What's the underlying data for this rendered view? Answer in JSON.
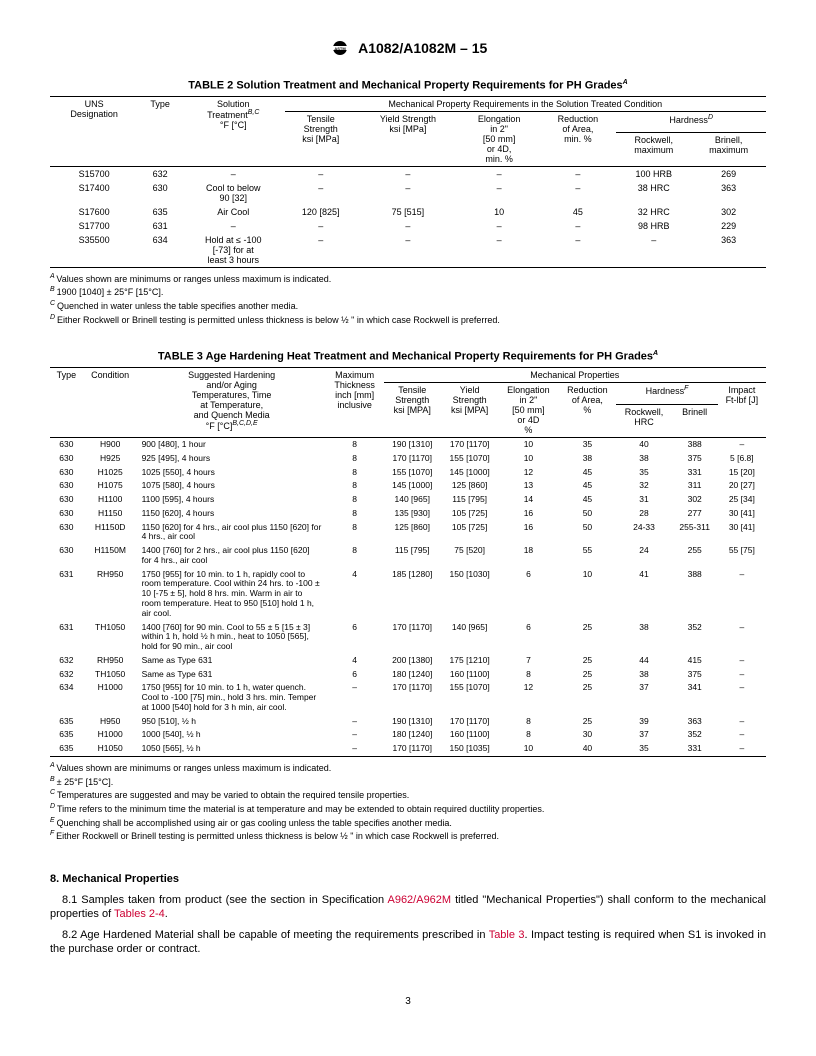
{
  "header": {
    "standard": "A1082/A1082M – 15"
  },
  "table2": {
    "title": "TABLE 2 Solution Treatment and Mechanical Property Requirements for PH Grades",
    "titleSup": "A",
    "spanHead": "Mechanical Property Requirements in the Solution Treated Condition",
    "cols": {
      "uns": "UNS\nDesignation",
      "type": "Type",
      "solution": "Solution\nTreatment",
      "solutionSup": "B,C",
      "solutionUnit": "°F [°C]",
      "tensile": "Tensile\nStrength\nksi [MPa]",
      "yield": "Yield Strength\nksi [MPa]",
      "elong": "Elongation\nin 2\"\n[50 mm]\nor 4D,\nmin. %",
      "reduction": "Reduction\nof Area,\nmin. %",
      "hardness": "Hardness",
      "hardnessSup": "D",
      "rockwell": "Rockwell,\nmaximum",
      "brinell": "Brinell,\nmaximum"
    },
    "rows": [
      {
        "uns": "S15700",
        "type": "632",
        "sol": "–",
        "ten": "–",
        "yld": "–",
        "el": "–",
        "ra": "–",
        "rock": "100 HRB",
        "brin": "269"
      },
      {
        "uns": "S17400",
        "type": "630",
        "sol": "Cool to below\n90 [32]",
        "ten": "–",
        "yld": "–",
        "el": "–",
        "ra": "–",
        "rock": "38 HRC",
        "brin": "363"
      },
      {
        "uns": "S17600",
        "type": "635",
        "sol": "Air Cool",
        "ten": "120 [825]",
        "yld": "75 [515]",
        "el": "10",
        "ra": "45",
        "rock": "32 HRC",
        "brin": "302"
      },
      {
        "uns": "S17700",
        "type": "631",
        "sol": "–",
        "ten": "–",
        "yld": "–",
        "el": "–",
        "ra": "–",
        "rock": "98 HRB",
        "brin": "229"
      },
      {
        "uns": "S35500",
        "type": "634",
        "sol": "Hold at ≤ -100\n[-73] for at\nleast 3 hours",
        "ten": "–",
        "yld": "–",
        "el": "–",
        "ra": "–",
        "rock": "–",
        "brin": "363"
      }
    ],
    "notes": [
      {
        "sup": "A",
        "txt": "Values shown are minimums or ranges unless maximum is indicated."
      },
      {
        "sup": "B",
        "txt": "1900 [1040] ± 25°F [15°C]."
      },
      {
        "sup": "C",
        "txt": "Quenched in water unless the table specifies another media."
      },
      {
        "sup": "D",
        "txt": "Either Rockwell or Brinell testing is permitted unless thickness is below ½ \" in which case Rockwell is preferred."
      }
    ]
  },
  "table3": {
    "title": "TABLE 3 Age Hardening Heat Treatment and Mechanical Property Requirements for PH Grades",
    "titleSup": "A",
    "spanHead": "Mechanical Properties",
    "cols": {
      "type": "Type",
      "cond": "Condition",
      "treat": "Suggested Hardening\nand/or Aging\nTemperatures, Time\nat Temperature,\nand Quench Media\n°F [°C]",
      "treatSup": "B,C,D,E",
      "thick": "Maximum\nThickness\ninch [mm]\ninclusive",
      "tensile": "Tensile\nStrength\nksi [MPA]",
      "yield": "Yield\nStrength\nksi [MPA]",
      "elong": "Elongation\nin 2\"\n[50 mm]\nor 4D\n%",
      "reduction": "Reduction\nof Area,\n%",
      "hardness": "Hardness",
      "hardnessSup": "F",
      "rockwell": "Rockwell,\nHRC",
      "brinell": "Brinell",
      "impact": "Impact\nFt-lbf [J]"
    },
    "rows": [
      {
        "t": "630",
        "c": "H900",
        "tr": "900 [480], 1 hour",
        "th": "8",
        "ts": "190 [1310]",
        "ys": "170 [1170]",
        "el": "10",
        "ra": "35",
        "r": "40",
        "b": "388",
        "i": "–"
      },
      {
        "t": "630",
        "c": "H925",
        "tr": "925 [495], 4 hours",
        "th": "8",
        "ts": "170 [1170]",
        "ys": "155 [1070]",
        "el": "10",
        "ra": "38",
        "r": "38",
        "b": "375",
        "i": "5 [6.8]"
      },
      {
        "t": "630",
        "c": "H1025",
        "tr": "1025 [550], 4 hours",
        "th": "8",
        "ts": "155 [1070]",
        "ys": "145 [1000]",
        "el": "12",
        "ra": "45",
        "r": "35",
        "b": "331",
        "i": "15 [20]"
      },
      {
        "t": "630",
        "c": "H1075",
        "tr": "1075 [580], 4 hours",
        "th": "8",
        "ts": "145 [1000]",
        "ys": "125 [860]",
        "el": "13",
        "ra": "45",
        "r": "32",
        "b": "311",
        "i": "20 [27]"
      },
      {
        "t": "630",
        "c": "H1100",
        "tr": "1100 [595], 4 hours",
        "th": "8",
        "ts": "140 [965]",
        "ys": "115 [795]",
        "el": "14",
        "ra": "45",
        "r": "31",
        "b": "302",
        "i": "25 [34]"
      },
      {
        "t": "630",
        "c": "H1150",
        "tr": "1150 [620], 4 hours",
        "th": "8",
        "ts": "135 [930]",
        "ys": "105 [725]",
        "el": "16",
        "ra": "50",
        "r": "28",
        "b": "277",
        "i": "30 [41]"
      },
      {
        "t": "630",
        "c": "H1150D",
        "tr": "1150 [620] for 4 hrs., air cool plus 1150 [620] for 4 hrs., air cool",
        "th": "8",
        "ts": "125 [860]",
        "ys": "105 [725]",
        "el": "16",
        "ra": "50",
        "r": "24-33",
        "b": "255-311",
        "i": "30 [41]"
      },
      {
        "t": "630",
        "c": "H1150M",
        "tr": "1400 [760] for 2 hrs., air cool plus 1150 [620] for 4 hrs., air cool",
        "th": "8",
        "ts": "115 [795]",
        "ys": "75 [520]",
        "el": "18",
        "ra": "55",
        "r": "24",
        "b": "255",
        "i": "55 [75]"
      },
      {
        "t": "631",
        "c": "RH950",
        "tr": "1750 [955] for 10 min. to 1 h, rapidly cool to room temperature. Cool within 24 hrs. to -100 ± 10 [-75 ± 5], hold 8 hrs. min. Warm in air to room temperature. Heat to 950 [510] hold 1 h, air cool.",
        "th": "4",
        "ts": "185 [1280]",
        "ys": "150 [1030]",
        "el": "6",
        "ra": "10",
        "r": "41",
        "b": "388",
        "i": "–"
      },
      {
        "t": "631",
        "c": "TH1050",
        "tr": "1400 [760] for 90 min. Cool to 55 ± 5 [15 ± 3] within 1 h, hold ½ h min., heat to 1050 [565], hold for 90 min., air cool",
        "th": "6",
        "ts": "170 [1170]",
        "ys": "140 [965]",
        "el": "6",
        "ra": "25",
        "r": "38",
        "b": "352",
        "i": "–"
      },
      {
        "t": "632",
        "c": "RH950",
        "tr": "Same as Type 631",
        "th": "4",
        "ts": "200 [1380]",
        "ys": "175 [1210]",
        "el": "7",
        "ra": "25",
        "r": "44",
        "b": "415",
        "i": "–"
      },
      {
        "t": "632",
        "c": "TH1050",
        "tr": "Same as Type 631",
        "th": "6",
        "ts": "180 [1240]",
        "ys": "160 [1100]",
        "el": "8",
        "ra": "25",
        "r": "38",
        "b": "375",
        "i": "–"
      },
      {
        "t": "634",
        "c": "H1000",
        "tr": "1750 [955] for 10 min. to 1 h, water quench. Cool to -100 [75] min., hold 3 hrs. min. Temper at 1000 [540] hold for 3 h min, air cool.",
        "th": "–",
        "ts": "170 [1170]",
        "ys": "155 [1070]",
        "el": "12",
        "ra": "25",
        "r": "37",
        "b": "341",
        "i": "–"
      },
      {
        "t": "635",
        "c": "H950",
        "tr": "950 [510], ½ h",
        "th": "–",
        "ts": "190 [1310]",
        "ys": "170 [1170]",
        "el": "8",
        "ra": "25",
        "r": "39",
        "b": "363",
        "i": "–"
      },
      {
        "t": "635",
        "c": "H1000",
        "tr": "1000 [540], ½ h",
        "th": "–",
        "ts": "180 [1240]",
        "ys": "160 [1100]",
        "el": "8",
        "ra": "30",
        "r": "37",
        "b": "352",
        "i": "–"
      },
      {
        "t": "635",
        "c": "H1050",
        "tr": "1050 [565], ½ h",
        "th": "–",
        "ts": "170 [1170]",
        "ys": "150 [1035]",
        "el": "10",
        "ra": "40",
        "r": "35",
        "b": "331",
        "i": "–"
      }
    ],
    "notes": [
      {
        "sup": "A",
        "txt": "Values shown are minimums or ranges unless maximum is indicated."
      },
      {
        "sup": "B",
        "txt": "± 25°F [15°C]."
      },
      {
        "sup": "C",
        "txt": "Temperatures are suggested and may be varied to obtain the required tensile properties."
      },
      {
        "sup": "D",
        "txt": "Time refers to the minimum time the material is at temperature and may be extended to obtain required ductility properties."
      },
      {
        "sup": "E",
        "txt": "Quenching shall be accomplished using air or gas cooling unless the table specifies another media."
      },
      {
        "sup": "F",
        "txt": "Either Rockwell or Brinell testing is permitted unless thickness is below ½ \" in which case Rockwell is preferred."
      }
    ]
  },
  "section8": {
    "heading": "8.  Mechanical Properties",
    "p1a": "8.1  Samples taken from product (see the section in Specification ",
    "p1link1": "A962/A962M",
    "p1b": " titled \"Mechanical Properties\") shall conform to the mechanical properties of ",
    "p1link2": "Tables 2-4",
    "p1c": ".",
    "p2a": "8.2  Age Hardened Material shall be capable of meeting the requirements prescribed in ",
    "p2link": "Table 3",
    "p2b": ". Impact testing is required when S1 is invoked in the purchase order or contract."
  },
  "pageNum": "3"
}
